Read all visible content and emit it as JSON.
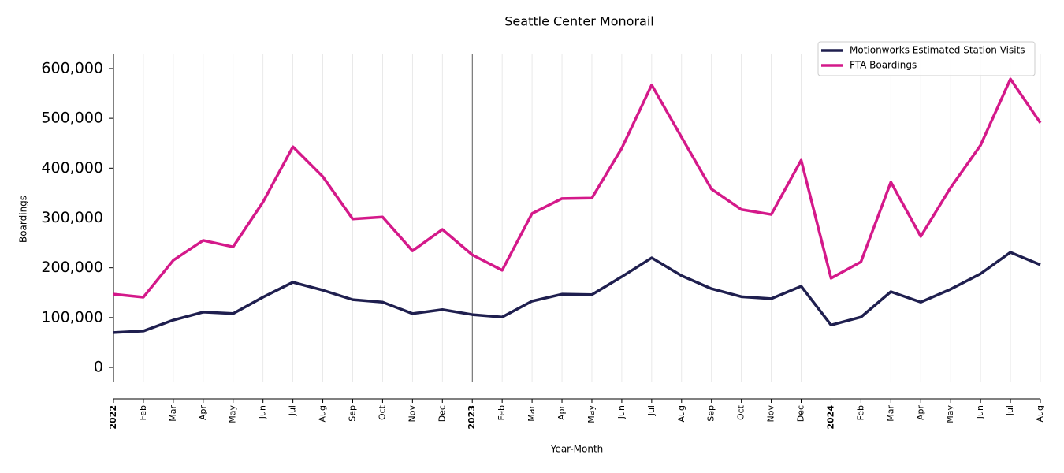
{
  "chart_data": {
    "type": "line",
    "title": "Seattle Center Monorail",
    "x_label": "Year-Month",
    "y_label": "Boardings",
    "categories": [
      "2022",
      "Feb",
      "Mar",
      "Apr",
      "May",
      "Jun",
      "Jul",
      "Aug",
      "Sep",
      "Oct",
      "Nov",
      "Dec",
      "2023",
      "Feb",
      "Mar",
      "Apr",
      "May",
      "Jun",
      "Jul",
      "Aug",
      "Sep",
      "Oct",
      "Nov",
      "Dec",
      "2024",
      "Feb",
      "Mar",
      "Apr",
      "May",
      "Jun",
      "Jul",
      "Aug"
    ],
    "series": [
      {
        "name": "Motionworks Estimated Station Visits",
        "color": "#1f1f4f",
        "values": [
          70000,
          73000,
          95000,
          111000,
          108000,
          141000,
          171000,
          155000,
          136000,
          131000,
          108000,
          116000,
          106000,
          101000,
          133000,
          147000,
          146000,
          182000,
          220000,
          184000,
          158000,
          142000,
          138000,
          163000,
          85000,
          101000,
          152000,
          131000,
          157000,
          188000,
          231000,
          206000
        ]
      },
      {
        "name": "FTA Boardings",
        "color": "#d4198a",
        "values": [
          147000,
          141000,
          215000,
          255000,
          242000,
          332000,
          443000,
          383000,
          298000,
          302000,
          234000,
          277000,
          226000,
          195000,
          309000,
          339000,
          340000,
          440000,
          567000,
          462000,
          358000,
          317000,
          307000,
          416000,
          179000,
          212000,
          372000,
          263000,
          361000,
          446000,
          579000,
          491000
        ]
      }
    ],
    "ylim": [
      -30000,
      630000
    ],
    "yticks": [
      0,
      {
        "value": 100000,
        "label": "100,000"
      },
      {
        "value": 200000,
        "label": "200,000"
      },
      {
        "value": 300000,
        "label": "300,000"
      },
      {
        "value": 400000,
        "label": "400,000"
      },
      {
        "value": 500000,
        "label": "500,000"
      },
      {
        "value": 600000,
        "label": "600,000"
      }
    ],
    "grid": "x",
    "legend": "upper right"
  }
}
